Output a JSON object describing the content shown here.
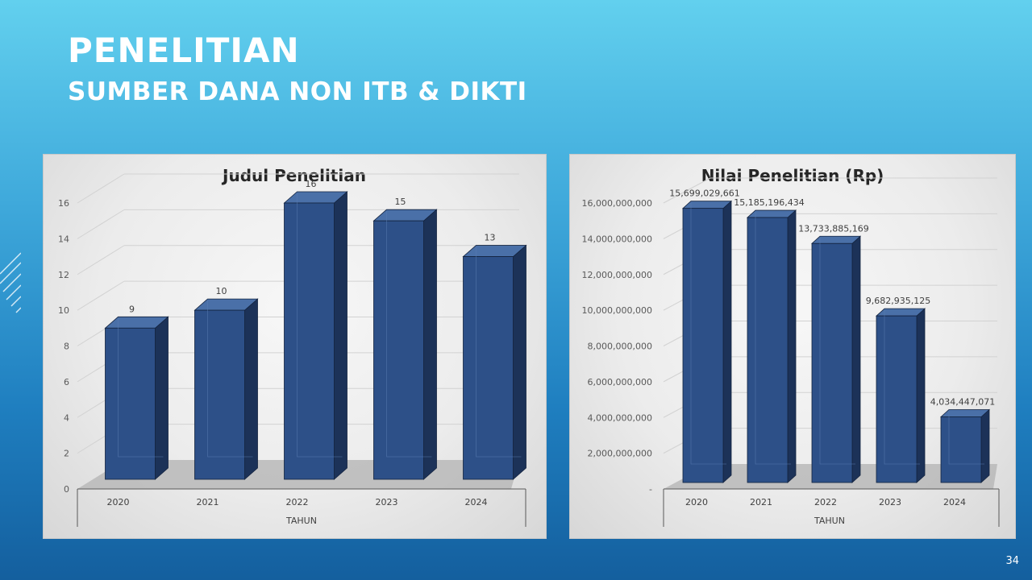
{
  "slide": {
    "title": "PENELITIAN",
    "subtitle": "SUMBER DANA NON ITB & DIKTI",
    "page_number": "34"
  },
  "colors": {
    "bar_front": "#2d5088",
    "bar_side": "#1c3258",
    "bar_top": "#4a70a8",
    "accent": "#1f7fc0"
  },
  "chart_data": [
    {
      "type": "bar",
      "title": "Judul Penelitian",
      "xlabel": "TAHUN",
      "ylabel": "",
      "categories": [
        "2020",
        "2021",
        "2022",
        "2023",
        "2024"
      ],
      "values": [
        9,
        10,
        16,
        15,
        13
      ],
      "data_labels": [
        "9",
        "10",
        "16",
        "15",
        "13"
      ],
      "yticks": [
        "0",
        "2",
        "4",
        "6",
        "8",
        "10",
        "12",
        "14",
        "16"
      ],
      "ylim": [
        0,
        16
      ],
      "grid": true,
      "legend": "none"
    },
    {
      "type": "bar",
      "title": "Nilai Penelitian (Rp)",
      "xlabel": "TAHUN",
      "ylabel": "",
      "categories": [
        "2020",
        "2021",
        "2022",
        "2023",
        "2024"
      ],
      "values": [
        15699029661,
        15185196434,
        13733885169,
        9682935125,
        4034447071
      ],
      "data_labels": [
        "15,699,029,661",
        "15,185,196,434",
        "13,733,885,169",
        "9,682,935,125",
        "4,034,447,071"
      ],
      "yticks": [
        "-",
        "2,000,000,000",
        "4,000,000,000",
        "6,000,000,000",
        "8,000,000,000",
        "10,000,000,000",
        "12,000,000,000",
        "14,000,000,000",
        "16,000,000,000"
      ],
      "ylim": [
        0,
        16000000000
      ],
      "grid": true,
      "legend": "none"
    }
  ]
}
